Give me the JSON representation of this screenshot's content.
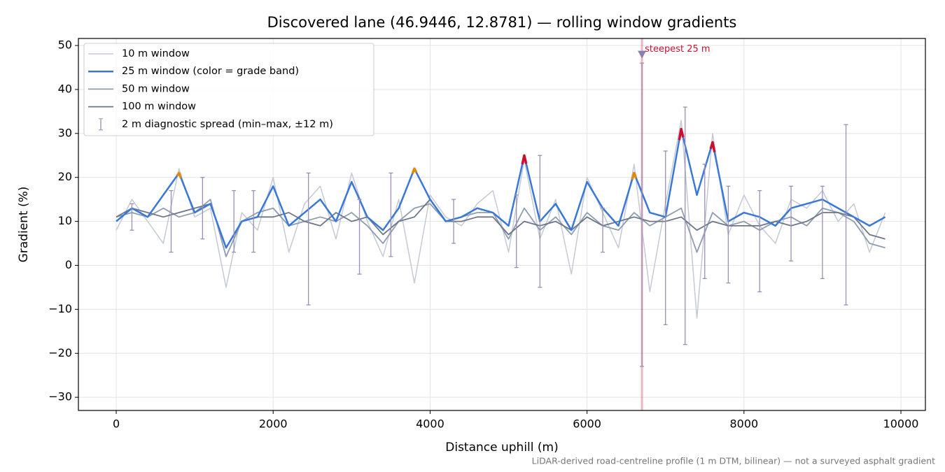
{
  "chart_data": {
    "type": "line",
    "title": "Discovered lane (46.9446, 12.8781) — rolling window gradients",
    "xlabel": "Distance uphill (m)",
    "ylabel": "Gradient (%)",
    "footnote": "LiDAR-derived road-centreline profile (1 m DTM, bilinear) — not a surveyed asphalt gradient",
    "x": [
      0,
      200,
      400,
      600,
      800,
      1000,
      1200,
      1400,
      1600,
      1800,
      2000,
      2200,
      2400,
      2600,
      2800,
      3000,
      3200,
      3400,
      3600,
      3800,
      4000,
      4200,
      4400,
      4600,
      4800,
      5000,
      5200,
      5400,
      5600,
      5800,
      6000,
      6200,
      6400,
      6600,
      6800,
      7000,
      7200,
      7400,
      7600,
      7800,
      8000,
      8200,
      8400,
      8600,
      8800,
      9000,
      9200,
      9400,
      9600,
      9800
    ],
    "series": [
      {
        "name": "10 m window",
        "color": "#c3cad5",
        "width": 1.5,
        "values": [
          8,
          15,
          10,
          5,
          22,
          11,
          13,
          -5,
          12,
          8,
          20,
          3,
          14,
          18,
          6,
          21,
          10,
          2,
          15,
          -4,
          16,
          11,
          9,
          14,
          17,
          3,
          24,
          6,
          15,
          -2,
          20,
          12,
          4,
          23,
          -6,
          14,
          33,
          -12,
          30,
          7,
          16,
          9,
          5,
          15,
          13,
          17,
          10,
          14,
          3,
          12
        ]
      },
      {
        "name": "25 m window (color = grade band)",
        "color": "#3a78d8",
        "width": 2.5,
        "values": [
          10,
          13,
          11,
          16,
          21,
          12,
          14,
          4,
          10,
          11,
          18,
          9,
          12,
          15,
          10,
          19,
          11,
          8,
          13,
          22,
          15,
          10,
          11,
          13,
          12,
          9,
          25,
          10,
          14,
          8,
          19,
          13,
          9,
          21,
          12,
          11,
          31,
          16,
          28,
          10,
          12,
          11,
          9,
          13,
          14,
          15,
          13,
          11,
          9,
          11
        ]
      },
      {
        "name": "50 m window",
        "color": "#8e9cb0",
        "width": 1.8,
        "values": [
          11,
          12,
          11,
          13,
          11,
          12,
          15,
          2,
          10,
          12,
          13,
          9,
          10,
          11,
          10,
          12,
          9,
          5,
          10,
          13,
          14,
          10,
          11,
          12,
          12,
          6,
          13,
          8,
          11,
          7,
          12,
          9,
          8,
          12,
          9,
          11,
          13,
          3,
          12,
          9,
          10,
          8,
          10,
          11,
          9,
          13,
          12,
          10,
          5,
          4
        ]
      },
      {
        "name": "100 m window",
        "color": "#6b7789",
        "width": 1.8,
        "values": [
          11,
          13,
          12,
          11,
          12,
          13,
          14,
          4,
          10,
          11,
          11,
          12,
          10,
          9,
          12,
          10,
          11,
          7,
          10,
          11,
          15,
          10,
          10,
          11,
          11,
          7,
          10,
          9,
          10,
          8,
          11,
          9,
          10,
          11,
          10,
          10,
          11,
          8,
          10,
          9,
          9,
          9,
          10,
          9,
          10,
          12,
          12,
          11,
          7,
          6
        ]
      }
    ],
    "grade_bands": [
      {
        "min": 20,
        "color": "#e08a0b"
      },
      {
        "min": 25,
        "color": "#c8102e"
      }
    ],
    "spread": {
      "name": "2 m diagnostic spread (min–max, ±12 m)",
      "color": "#9b8fb5",
      "x": [
        200,
        700,
        1100,
        1500,
        1750,
        2450,
        3100,
        3500,
        4300,
        5100,
        5400,
        6200,
        6700,
        7000,
        7250,
        7500,
        7800,
        8200,
        8600,
        9000,
        9300
      ],
      "min": [
        8,
        3,
        6,
        3,
        3,
        -9,
        -2,
        2,
        5,
        -0.5,
        -5,
        3,
        -23,
        -13.5,
        -18,
        -3,
        -4,
        -6,
        1,
        -3,
        -9
      ],
      "max": [
        14,
        17,
        20,
        17,
        17,
        21,
        15,
        21,
        15,
        16,
        25,
        13,
        46,
        26,
        36,
        23,
        18,
        17,
        18,
        18,
        32
      ]
    },
    "steepest": {
      "x": 6700,
      "value": 48,
      "label": "steepest 25 m",
      "color": "#c8102e",
      "marker_color": "#8a7fad"
    },
    "xlim": [
      -482,
      10312
    ],
    "ylim": [
      -33,
      51.6
    ],
    "xticks": [
      0,
      2000,
      4000,
      6000,
      8000,
      10000
    ],
    "yticks": [
      {
        "value": -30,
        "label": "−30"
      },
      {
        "value": -20,
        "label": "−20"
      },
      {
        "value": -10,
        "label": "−10"
      },
      0,
      10,
      20,
      30,
      40,
      50
    ],
    "grid": true,
    "legend": "upper left"
  }
}
